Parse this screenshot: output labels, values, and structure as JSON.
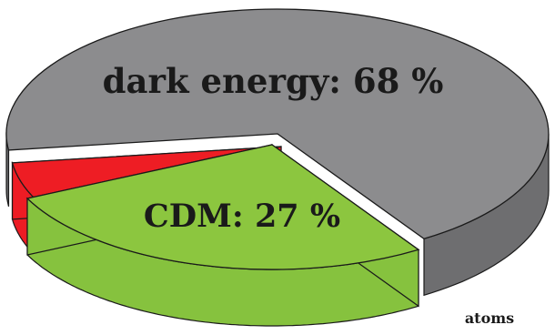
{
  "chart_data": {
    "type": "pie",
    "style": "3d-exploded",
    "slices": [
      {
        "name": "dark energy",
        "label": "dark energy: 68 %",
        "value": 68,
        "color": "#8c8c8e",
        "side_color": "#6e6e70"
      },
      {
        "name": "CDM",
        "label": "CDM: 27 %",
        "value": 27,
        "color": "#8cc63f",
        "side_color": "#86c23e"
      },
      {
        "name": "atoms",
        "label": "atoms",
        "value": 5,
        "color": "#ee1d24",
        "side_color": "#ed1c24"
      }
    ],
    "title": "",
    "legend": "none"
  }
}
